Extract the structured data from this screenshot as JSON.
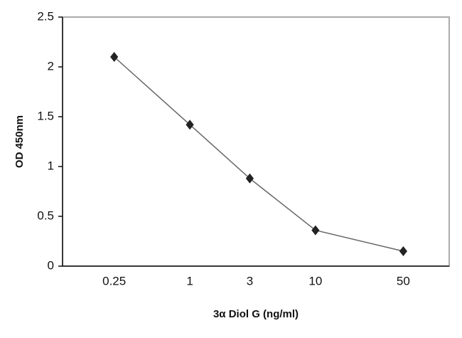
{
  "chart_data": {
    "type": "line",
    "x_label": "3α Diol G (ng/ml)",
    "y_label": "OD 450nm",
    "x": [
      0.25,
      1,
      3,
      10,
      50
    ],
    "xscale": "log",
    "xlim": [
      0.097,
      116
    ],
    "xticks": [
      0.25,
      1,
      3,
      10,
      50
    ],
    "series": [
      {
        "values": [
          2.1,
          1.42,
          0.88,
          0.36,
          0.15
        ],
        "color": "#222222"
      }
    ],
    "ylim": [
      0,
      2.5
    ],
    "yticks": [
      0,
      0.5,
      1,
      1.5,
      2,
      2.5
    ],
    "grid": false
  }
}
